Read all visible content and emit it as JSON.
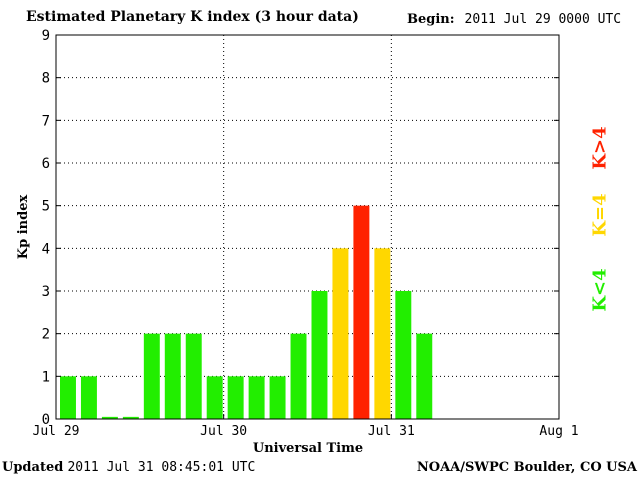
{
  "header": {
    "title": "Estimated Planetary K index (3 hour data)",
    "begin_label": "Begin:",
    "begin_value": "2011 Jul 29 0000 UTC"
  },
  "footer": {
    "updated_label": "Updated",
    "updated_value": "2011 Jul 31 08:45:01 UTC",
    "credit": "NOAA/SWPC Boulder, CO USA"
  },
  "legend": [
    {
      "label": "K<4",
      "color": "#22ee00"
    },
    {
      "label": "K=4",
      "color": "#ffd700"
    },
    {
      "label": "K>4",
      "color": "#ff2200"
    }
  ],
  "chart_data": {
    "type": "bar",
    "title": "Estimated Planetary K index (3 hour data)",
    "xlabel": "Universal Time",
    "ylabel": "Kp index",
    "ylim": [
      0,
      9
    ],
    "yticks": [
      0,
      1,
      2,
      3,
      4,
      5,
      6,
      7,
      8,
      9
    ],
    "xticks": [
      "Jul 29",
      "Jul 30",
      "Jul 31",
      "Aug 1"
    ],
    "slots_per_day": 8,
    "days": 3,
    "grid": true,
    "values": [
      1,
      1,
      0.05,
      0.05,
      2,
      2,
      2,
      1,
      1,
      1,
      1,
      2,
      3,
      4,
      5,
      4,
      3,
      2
    ],
    "colors": {
      "below": "#22ee00",
      "equal": "#ffd700",
      "above": "#ff2200"
    }
  }
}
